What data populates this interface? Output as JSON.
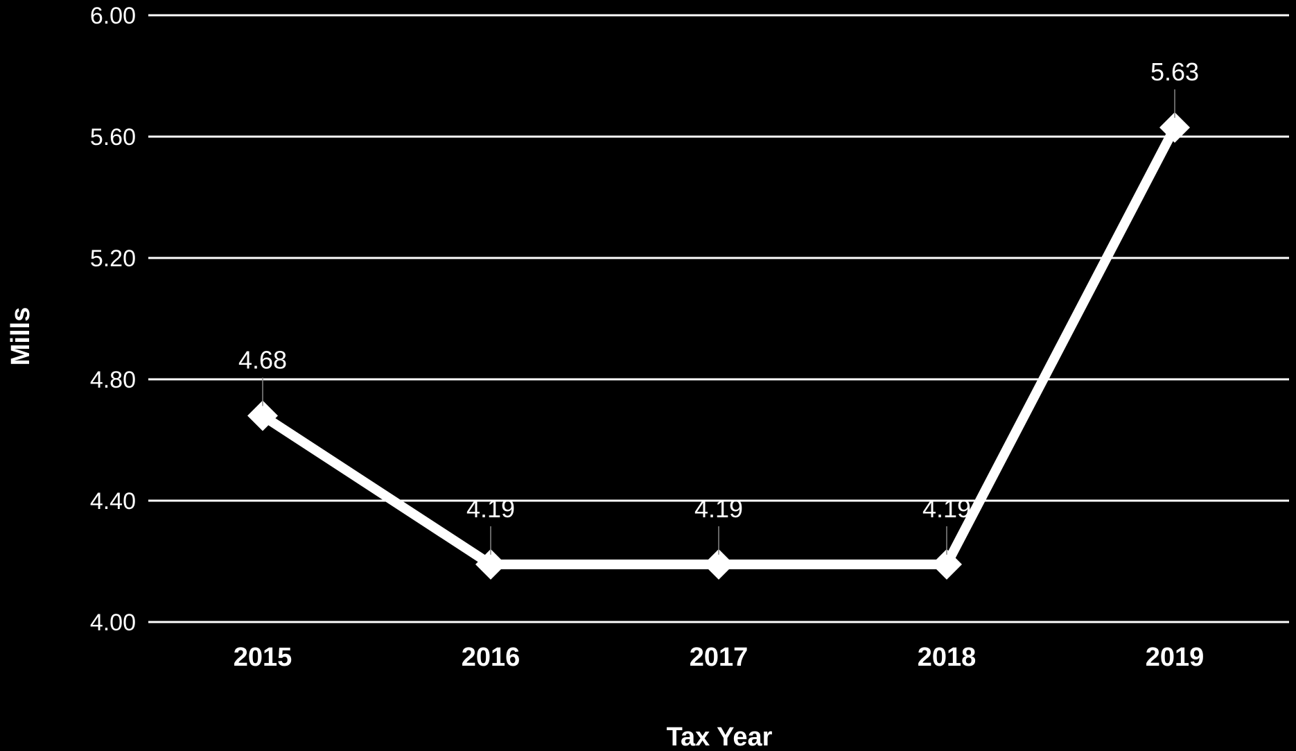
{
  "chart_data": {
    "type": "line",
    "categories": [
      "2015",
      "2016",
      "2017",
      "2018",
      "2019"
    ],
    "series": [
      {
        "values": [
          4.68,
          4.19,
          4.19,
          4.19,
          5.63
        ]
      }
    ],
    "data_labels": [
      "4.68",
      "4.19",
      "4.19",
      "4.19",
      "5.63"
    ],
    "yticks": [
      "4.00",
      "4.40",
      "4.80",
      "5.20",
      "5.60",
      "6.00"
    ],
    "ylim": [
      4.0,
      6.0
    ],
    "xlabel": "Tax Year",
    "ylabel": "Mills",
    "grid": true,
    "legend": "none",
    "marker": "diamond",
    "colors": {
      "background": "#000000",
      "line": "#ffffff",
      "grid": "#ffffff",
      "text": "#ffffff"
    }
  }
}
